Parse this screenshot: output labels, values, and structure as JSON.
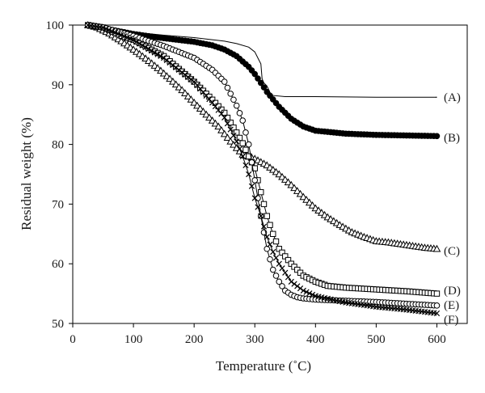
{
  "chart_data": {
    "type": "line",
    "title": "",
    "xlabel": "Temperature (˚C)",
    "ylabel": "Residual weight (%)",
    "xlim": [
      0,
      650
    ],
    "ylim": [
      50,
      100
    ],
    "x_ticks": [
      "0",
      "100",
      "200",
      "300",
      "400",
      "500",
      "600"
    ],
    "y_ticks": [
      "50",
      "60",
      "70",
      "80",
      "90",
      "100"
    ],
    "grid": false,
    "legend": "none",
    "series": [
      {
        "name": "(A)",
        "marker": "none",
        "fill": "none",
        "x": [
          25,
          50,
          100,
          150,
          200,
          250,
          270,
          290,
          300,
          305,
          310,
          312,
          315,
          320,
          325,
          330,
          350,
          400,
          500,
          600
        ],
        "y": [
          100,
          99.5,
          98.8,
          98.3,
          97.9,
          97.3,
          96.9,
          96.3,
          95.5,
          94.5,
          93.5,
          91.0,
          90.3,
          89.8,
          88.7,
          88.2,
          88.0,
          88.0,
          87.9,
          87.9
        ]
      },
      {
        "name": "(B)",
        "marker": "circle",
        "fill": "#000000",
        "x": [
          25,
          50,
          100,
          150,
          200,
          230,
          250,
          270,
          290,
          300,
          310,
          320,
          340,
          360,
          380,
          400,
          450,
          500,
          550,
          600
        ],
        "y": [
          100,
          99.5,
          98.5,
          97.8,
          97.2,
          96.6,
          95.9,
          94.8,
          93.0,
          91.8,
          90.3,
          88.8,
          86.3,
          84.3,
          83.0,
          82.3,
          81.8,
          81.6,
          81.5,
          81.4
        ]
      },
      {
        "name": "(C)",
        "marker": "triangle",
        "fill": "none",
        "x": [
          25,
          40,
          60,
          80,
          100,
          120,
          140,
          160,
          180,
          200,
          220,
          240,
          260,
          280,
          300,
          320,
          340,
          360,
          380,
          400,
          420,
          440,
          460,
          480,
          500,
          520,
          540,
          560,
          580,
          600
        ],
        "y": [
          100,
          99.6,
          98.6,
          97.3,
          95.9,
          94.4,
          92.8,
          91.0,
          89.1,
          87.0,
          85.0,
          83.0,
          80.5,
          78.3,
          77.6,
          76.5,
          75.0,
          73.2,
          71.2,
          69.3,
          67.8,
          66.5,
          65.3,
          64.5,
          63.8,
          63.6,
          63.3,
          63.0,
          62.7,
          62.5
        ]
      },
      {
        "name": "(D)",
        "marker": "square",
        "fill": "none",
        "x": [
          25,
          50,
          80,
          100,
          150,
          200,
          230,
          250,
          270,
          280,
          290,
          300,
          310,
          320,
          330,
          340,
          360,
          380,
          400,
          420,
          450,
          500,
          550,
          600
        ],
        "y": [
          100,
          99.6,
          98.2,
          97.5,
          94.8,
          90.5,
          87.5,
          85.3,
          82.0,
          80.2,
          78.0,
          76.0,
          72.0,
          68.0,
          65.0,
          62.5,
          60.0,
          58.0,
          57.0,
          56.3,
          56.0,
          55.7,
          55.4,
          55.0
        ]
      },
      {
        "name": "(E)",
        "marker": "circle",
        "fill": "none",
        "x": [
          25,
          50,
          100,
          150,
          200,
          230,
          250,
          270,
          280,
          290,
          300,
          310,
          320,
          330,
          340,
          350,
          360,
          370,
          380,
          400,
          450,
          500,
          550,
          600
        ],
        "y": [
          100,
          99.6,
          98.2,
          96.5,
          94.5,
          92.5,
          90.5,
          86.5,
          84.0,
          80.0,
          74.0,
          68.0,
          62.5,
          59.0,
          57.0,
          55.5,
          54.8,
          54.4,
          54.2,
          54.0,
          53.8,
          53.6,
          53.3,
          53.0
        ]
      },
      {
        "name": "(F)",
        "marker": "cross",
        "fill": "none",
        "x": [
          25,
          50,
          100,
          150,
          200,
          230,
          250,
          270,
          280,
          290,
          300,
          310,
          320,
          330,
          340,
          350,
          360,
          380,
          400,
          450,
          500,
          550,
          600
        ],
        "y": [
          100,
          99.6,
          97.5,
          94.5,
          90.5,
          87.0,
          84.5,
          80.5,
          78.0,
          75.0,
          71.0,
          68.0,
          64.5,
          62.0,
          60.0,
          58.5,
          57.0,
          55.5,
          54.6,
          53.5,
          52.8,
          52.3,
          51.7
        ]
      }
    ]
  }
}
